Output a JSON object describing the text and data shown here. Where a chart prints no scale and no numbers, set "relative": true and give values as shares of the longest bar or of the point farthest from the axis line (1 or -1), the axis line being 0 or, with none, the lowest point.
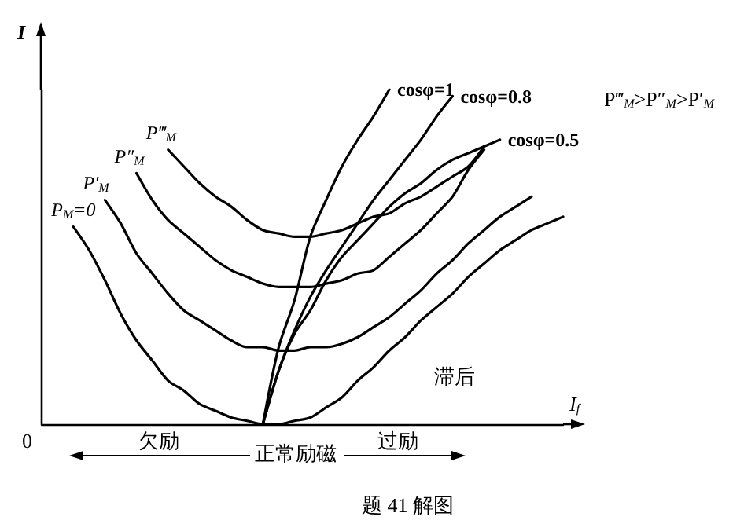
{
  "chart_data": {
    "type": "line",
    "relative": true,
    "xlabel": "I$_{f}$",
    "ylabel": "I",
    "categories": [
      null,
      null,
      null,
      null,
      null,
      null,
      null,
      null,
      null,
      null,
      null,
      null,
      null,
      null,
      null,
      null,
      null,
      null,
      null,
      null,
      null,
      null,
      null,
      null,
      null,
      null,
      null,
      null,
      null,
      null,
      null,
      null,
      null,
      null
    ],
    "series": [
      {
        "name": "P$_{M}$=0",
        "color": "#000000",
        "values": [
          null,
          null,
          0.59,
          0.52,
          0.43,
          0.33,
          0.25,
          0.19,
          0.13,
          0.1,
          0.06,
          0.04,
          0.02,
          0.01,
          0,
          0,
          0.01,
          0.02,
          0.05,
          0.08,
          0.13,
          0.17,
          0.22,
          0.26,
          0.31,
          0.35,
          0.39,
          0.44,
          0.48,
          0.52,
          0.55,
          0.58,
          0.6,
          0.62
        ]
      },
      {
        "name": "P′$_{M}$",
        "color": "#000000",
        "values": [
          null,
          null,
          null,
          null,
          0.67,
          0.6,
          0.51,
          0.45,
          0.39,
          0.34,
          0.31,
          0.28,
          0.25,
          0.23,
          0.23,
          0.22,
          0.22,
          0.23,
          0.23,
          0.24,
          0.26,
          0.29,
          0.32,
          0.36,
          0.4,
          0.45,
          0.49,
          0.54,
          0.58,
          0.62,
          0.65,
          0.68,
          null,
          null
        ]
      },
      {
        "name": "P″$_{M}$",
        "color": "#000000",
        "values": [
          null,
          null,
          null,
          null,
          null,
          null,
          0.75,
          0.67,
          0.61,
          0.57,
          0.53,
          0.49,
          0.46,
          0.44,
          0.42,
          0.41,
          0.41,
          0.41,
          0.42,
          0.43,
          0.45,
          0.46,
          0.5,
          0.54,
          0.58,
          0.63,
          0.68,
          0.76,
          0.82,
          null,
          null,
          null,
          null,
          null
        ]
      },
      {
        "name": "P‴$_{M}$",
        "color": "#000000",
        "values": [
          null,
          null,
          null,
          null,
          null,
          null,
          null,
          null,
          0.82,
          0.77,
          0.72,
          0.68,
          0.65,
          0.61,
          0.58,
          0.57,
          0.56,
          0.56,
          0.57,
          0.58,
          0.6,
          0.62,
          0.63,
          0.66,
          0.68,
          0.71,
          0.74,
          0.77,
          0.83,
          null,
          null,
          null,
          null,
          null
        ]
      },
      {
        "name": "cosφ=1",
        "color": "#000000",
        "values": [
          null,
          null,
          null,
          null,
          null,
          null,
          null,
          null,
          null,
          null,
          null,
          null,
          null,
          null,
          0,
          0.23,
          0.37,
          0.56,
          0.67,
          0.77,
          0.85,
          0.92,
          1,
          null,
          null,
          null,
          null,
          null,
          null,
          null,
          null,
          null,
          null,
          null
        ]
      },
      {
        "name": "cosφ=0.8",
        "color": "#000000",
        "values": [
          null,
          null,
          null,
          null,
          null,
          null,
          null,
          null,
          null,
          null,
          null,
          null,
          null,
          null,
          0,
          0.16,
          0.28,
          0.38,
          0.46,
          0.53,
          0.6,
          0.67,
          0.73,
          0.79,
          0.85,
          0.92,
          0.98,
          null,
          null,
          null,
          null,
          null,
          null,
          null
        ]
      },
      {
        "name": "cosφ=0.5",
        "color": "#000000",
        "values": [
          null,
          null,
          null,
          null,
          null,
          null,
          null,
          null,
          null,
          null,
          null,
          null,
          null,
          null,
          0,
          0.16,
          0.27,
          0.34,
          0.43,
          0.5,
          0.55,
          0.6,
          0.65,
          0.69,
          0.72,
          0.76,
          0.79,
          0.81,
          0.83,
          0.85,
          null,
          null,
          null,
          null
        ]
      }
    ],
    "annotations": [
      "0",
      "欠励",
      "正常励磁",
      "过励",
      "滞后",
      "P‴$_{M}$>P″$_{M}$>P′$_{M}$",
      "题 41 解图"
    ],
    "grid": false,
    "legend": false,
    "marker": "none",
    "line_style": "solid"
  }
}
